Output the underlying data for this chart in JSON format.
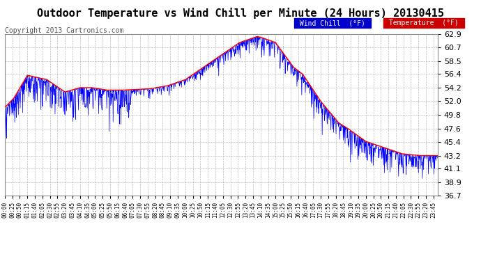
{
  "title": "Outdoor Temperature vs Wind Chill per Minute (24 Hours) 20130415",
  "copyright": "Copyright 2013 Cartronics.com",
  "legend_wind_chill": "Wind Chill  (°F)",
  "legend_temperature": "Temperature  (°F)",
  "wind_chill_color": "#0000ff",
  "temperature_color": "#ff0000",
  "legend_wc_bg": "#0000cc",
  "legend_temp_bg": "#cc0000",
  "background_color": "#ffffff",
  "plot_bg_color": "#ffffff",
  "text_color": "#000000",
  "grid_color": "#aaaaaa",
  "ylim_min": 36.7,
  "ylim_max": 62.9,
  "yticks": [
    36.7,
    38.9,
    41.1,
    43.2,
    45.4,
    47.6,
    49.8,
    52.0,
    54.2,
    56.4,
    58.5,
    60.7,
    62.9
  ],
  "title_fontsize": 11,
  "copyright_fontsize": 7
}
